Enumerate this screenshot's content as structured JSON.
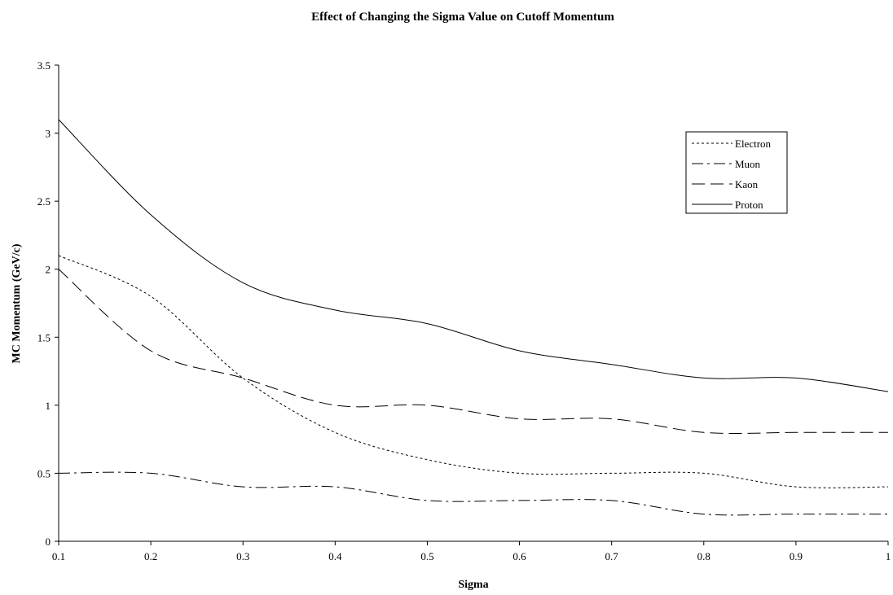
{
  "chart_data": {
    "type": "line",
    "title": "Effect of Changing the Sigma Value on Cutoff Momentum",
    "xlabel": "Sigma",
    "ylabel": "MC Momentum (GeV/c)",
    "xlim": [
      0.1,
      1.0
    ],
    "ylim": [
      0,
      3.5
    ],
    "x_ticks": [
      "0.1",
      "0.2",
      "0.3",
      "0.4",
      "0.5",
      "0.6",
      "0.7",
      "0.8",
      "0.9",
      "1"
    ],
    "y_ticks": [
      "0",
      "0.5",
      "1",
      "1.5",
      "2",
      "2.5",
      "3",
      "3.5"
    ],
    "grid": false,
    "legend_position": "top-right",
    "x": [
      0.1,
      0.2,
      0.3,
      0.4,
      0.5,
      0.6,
      0.7,
      0.8,
      0.9,
      1.0
    ],
    "series": [
      {
        "name": "Electron",
        "style": "dotted",
        "values": [
          2.1,
          1.8,
          1.2,
          0.8,
          0.6,
          0.5,
          0.5,
          0.5,
          0.4,
          0.4
        ]
      },
      {
        "name": "Muon",
        "style": "dash-dot",
        "values": [
          0.5,
          0.5,
          0.4,
          0.4,
          0.3,
          0.3,
          0.3,
          0.2,
          0.2,
          0.2
        ]
      },
      {
        "name": "Kaon",
        "style": "long-dash",
        "values": [
          2.0,
          1.4,
          1.2,
          1.0,
          1.0,
          0.9,
          0.9,
          0.8,
          0.8,
          0.8
        ]
      },
      {
        "name": "Proton",
        "style": "solid",
        "values": [
          3.1,
          2.4,
          1.9,
          1.7,
          1.6,
          1.4,
          1.3,
          1.2,
          1.2,
          1.1
        ]
      }
    ],
    "colors": {
      "line": "#000000",
      "background": "#ffffff"
    }
  }
}
